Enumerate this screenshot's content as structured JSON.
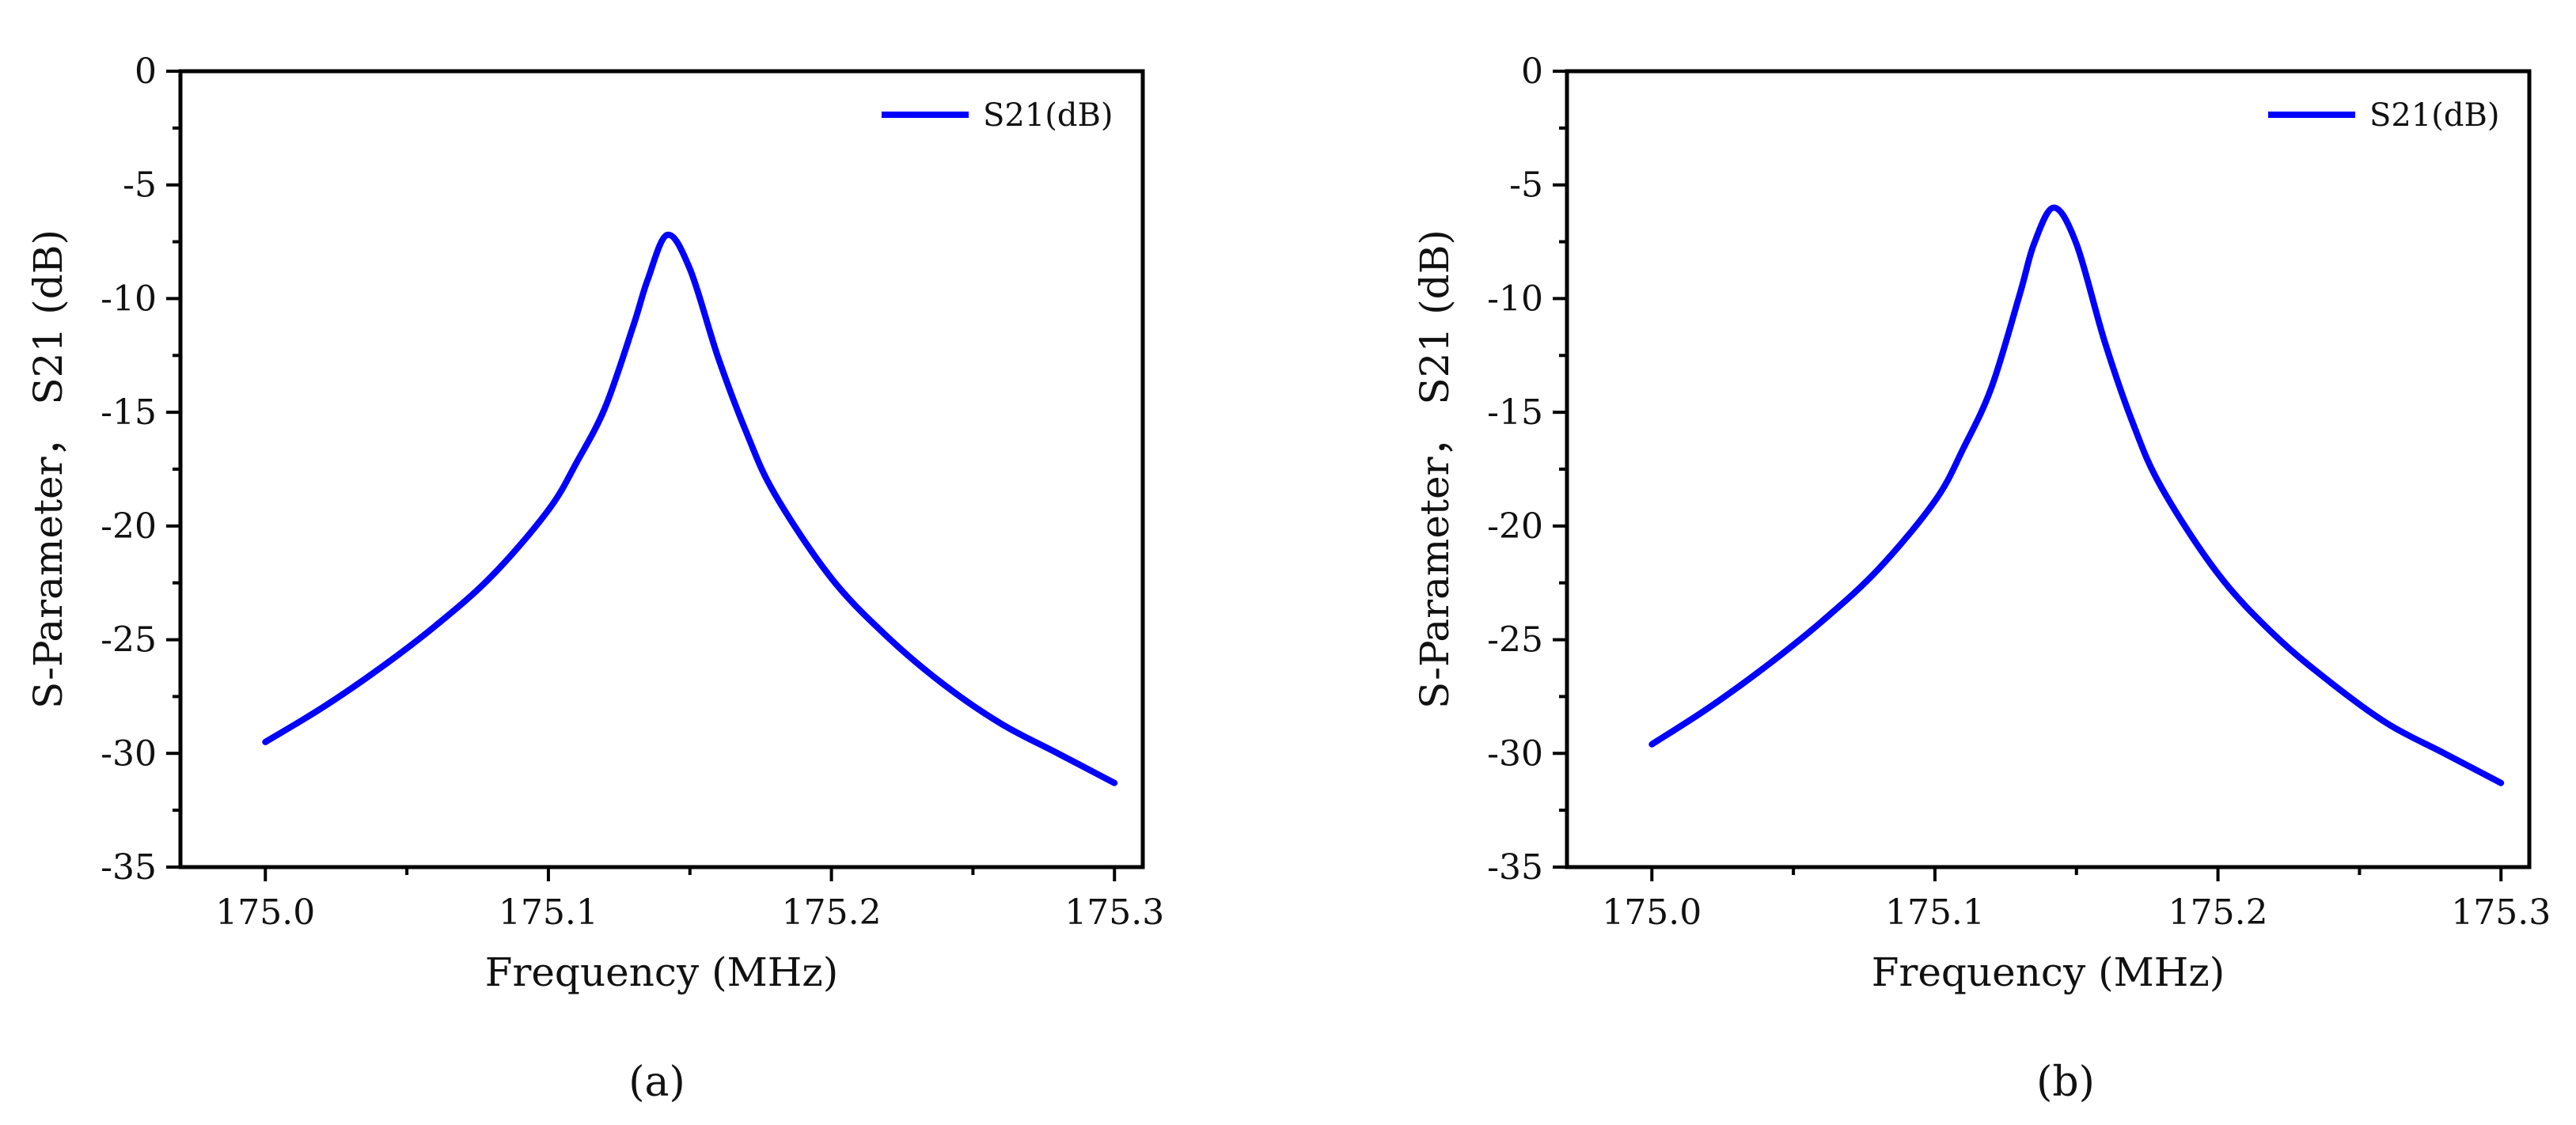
{
  "chart_data": [
    {
      "type": "line",
      "panel_label": "(a)",
      "xlabel": "Frequency (MHz)",
      "ylabel": "S-Parameter， S21 (dB)",
      "xlim": [
        174.97,
        175.31
      ],
      "ylim": [
        -35,
        0
      ],
      "x_ticks": [
        175.0,
        175.1,
        175.2,
        175.3
      ],
      "x_tick_labels": [
        "175.0",
        "175.1",
        "175.2",
        "175.3"
      ],
      "y_ticks": [
        0,
        -5,
        -10,
        -15,
        -20,
        -25,
        -30,
        -35
      ],
      "y_tick_labels": [
        "0",
        "-5",
        "-10",
        "-15",
        "-20",
        "-25",
        "-30",
        "-35"
      ],
      "grid": false,
      "legend_position": "top-right",
      "series": [
        {
          "name": "S21(dB)",
          "color": "#0000ff",
          "x": [
            175.0,
            175.02,
            175.04,
            175.06,
            175.08,
            175.1,
            175.11,
            175.12,
            175.13,
            175.135,
            175.142,
            175.15,
            175.16,
            175.17,
            175.18,
            175.2,
            175.22,
            175.24,
            175.26,
            175.28,
            175.3
          ],
          "y": [
            -29.5,
            -28.0,
            -26.3,
            -24.4,
            -22.2,
            -19.3,
            -17.2,
            -14.8,
            -11.2,
            -9.2,
            -7.2,
            -8.7,
            -12.6,
            -15.9,
            -18.6,
            -22.3,
            -24.9,
            -27.0,
            -28.7,
            -30.0,
            -31.3
          ]
        }
      ]
    },
    {
      "type": "line",
      "panel_label": "(b)",
      "xlabel": "Frequency (MHz)",
      "ylabel": "S-Parameter， S21 (dB)",
      "xlim": [
        174.97,
        175.31
      ],
      "ylim": [
        -35,
        0
      ],
      "x_ticks": [
        175.0,
        175.1,
        175.2,
        175.3
      ],
      "x_tick_labels": [
        "175.0",
        "175.1",
        "175.2",
        "175.3"
      ],
      "y_ticks": [
        0,
        -5,
        -10,
        -15,
        -20,
        -25,
        -30,
        -35
      ],
      "y_tick_labels": [
        "0",
        "-5",
        "-10",
        "-15",
        "-20",
        "-25",
        "-30",
        "-35"
      ],
      "grid": false,
      "legend_position": "top-right",
      "series": [
        {
          "name": "S21(dB)",
          "color": "#0000ff",
          "x": [
            175.0,
            175.02,
            175.04,
            175.06,
            175.08,
            175.1,
            175.11,
            175.12,
            175.13,
            175.135,
            175.142,
            175.15,
            175.16,
            175.17,
            175.18,
            175.2,
            175.22,
            175.24,
            175.26,
            175.28,
            175.3
          ],
          "y": [
            -29.6,
            -28.0,
            -26.2,
            -24.2,
            -21.9,
            -18.9,
            -16.6,
            -13.9,
            -9.8,
            -7.6,
            -6.0,
            -7.6,
            -11.9,
            -15.5,
            -18.3,
            -22.1,
            -24.8,
            -26.9,
            -28.7,
            -30.0,
            -31.3
          ]
        }
      ]
    }
  ]
}
